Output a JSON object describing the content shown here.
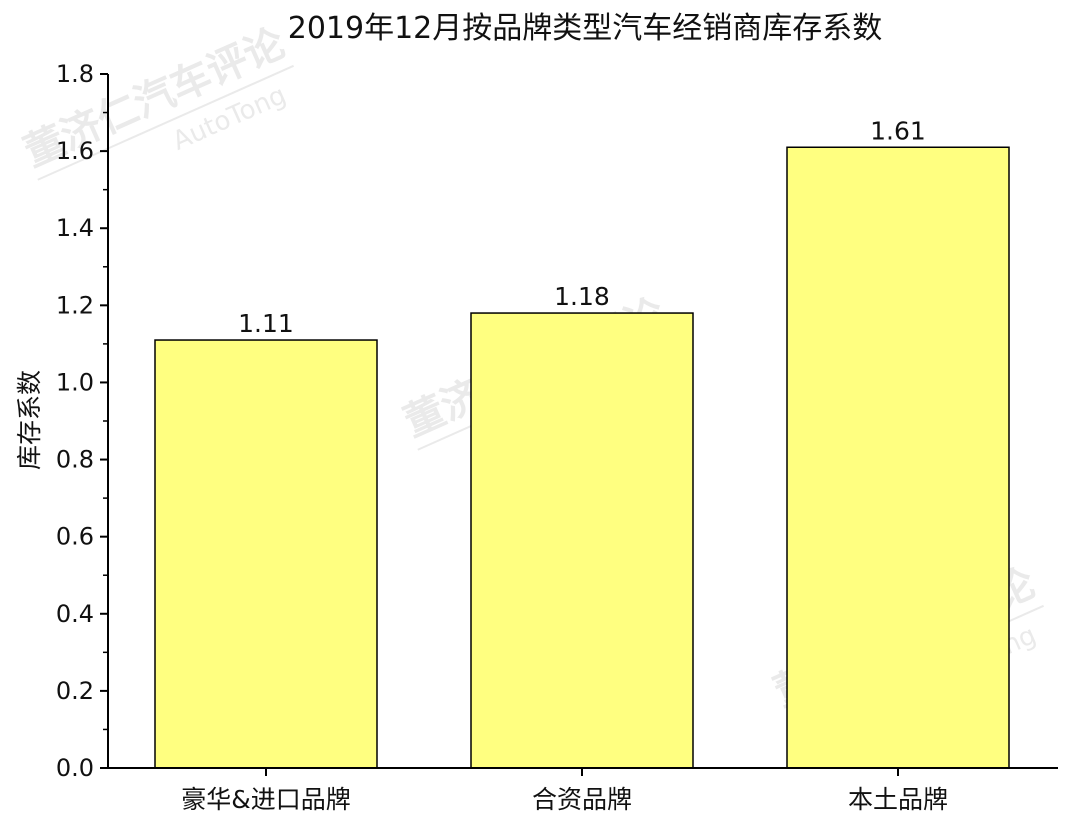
{
  "watermark": {
    "cn": "董济仁汽车评论",
    "en": "AutoTong"
  },
  "colors": {
    "bar_fill": "#ffff80",
    "bar_stroke": "#000000",
    "axis": "#000000"
  },
  "chart_data": {
    "type": "bar",
    "title": "2019年12月按品牌类型汽车经销商库存系数",
    "xlabel": "",
    "ylabel": "库存系数",
    "categories": [
      "豪华&进口品牌",
      "合资品牌",
      "本土品牌"
    ],
    "values": [
      1.11,
      1.18,
      1.61
    ],
    "data_labels": [
      "1.11",
      "1.18",
      "1.61"
    ],
    "ylim": [
      0,
      1.8
    ],
    "yticks": [
      "0.0",
      "0.2",
      "0.4",
      "0.6",
      "0.8",
      "1.0",
      "1.2",
      "1.4",
      "1.6",
      "1.8"
    ],
    "grid": false,
    "legend": "none"
  }
}
